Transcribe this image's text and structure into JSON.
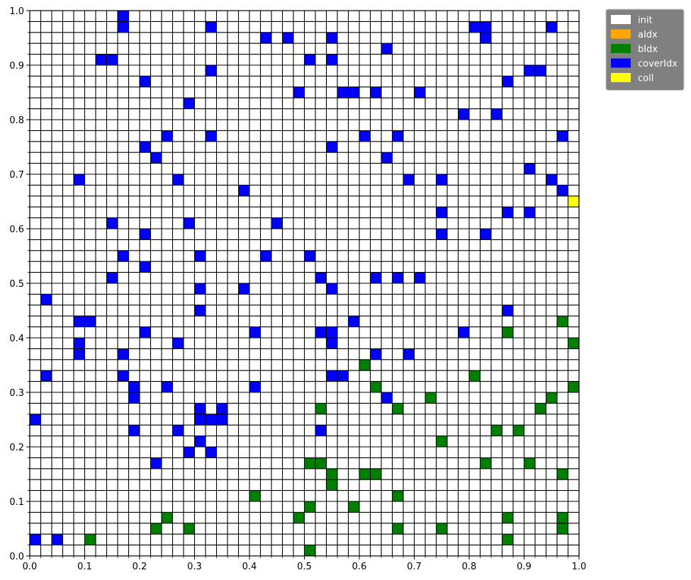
{
  "chart_data": {
    "type": "heatmap",
    "title": "",
    "xlabel": "",
    "ylabel": "",
    "xlim": [
      0,
      1
    ],
    "ylim": [
      0,
      1
    ],
    "grid_divisions": 50,
    "cell_size": 0.02,
    "grid": true,
    "x_ticks": [
      "0.0",
      "0.1",
      "0.2",
      "0.3",
      "0.4",
      "0.5",
      "0.6",
      "0.7",
      "0.8",
      "0.9",
      "1.0"
    ],
    "y_ticks": [
      "0.0",
      "0.1",
      "0.2",
      "0.3",
      "0.4",
      "0.5",
      "0.6",
      "0.7",
      "0.8",
      "0.9",
      "1.0"
    ],
    "legend_position": "upper-right-outside",
    "legend": [
      {
        "label": "init",
        "color": "#ffffff"
      },
      {
        "label": "aIdx",
        "color": "#ffa500"
      },
      {
        "label": "bIdx",
        "color": "#008000"
      },
      {
        "label": "coverIdx",
        "color": "#0000ff"
      },
      {
        "label": "coll",
        "color": "#ffff00"
      }
    ],
    "cells": {
      "coverIdx": [
        [
          0.17,
          0.99
        ],
        [
          0.17,
          0.97
        ],
        [
          0.33,
          0.97
        ],
        [
          0.81,
          0.97
        ],
        [
          0.83,
          0.97
        ],
        [
          0.95,
          0.97
        ],
        [
          0.43,
          0.95
        ],
        [
          0.47,
          0.95
        ],
        [
          0.55,
          0.95
        ],
        [
          0.83,
          0.95
        ],
        [
          0.65,
          0.93
        ],
        [
          0.13,
          0.91
        ],
        [
          0.15,
          0.91
        ],
        [
          0.51,
          0.91
        ],
        [
          0.55,
          0.91
        ],
        [
          0.33,
          0.89
        ],
        [
          0.91,
          0.89
        ],
        [
          0.93,
          0.89
        ],
        [
          0.21,
          0.87
        ],
        [
          0.87,
          0.87
        ],
        [
          0.49,
          0.85
        ],
        [
          0.57,
          0.85
        ],
        [
          0.59,
          0.85
        ],
        [
          0.63,
          0.85
        ],
        [
          0.71,
          0.85
        ],
        [
          0.29,
          0.83
        ],
        [
          0.79,
          0.81
        ],
        [
          0.85,
          0.81
        ],
        [
          0.25,
          0.77
        ],
        [
          0.33,
          0.77
        ],
        [
          0.61,
          0.77
        ],
        [
          0.67,
          0.77
        ],
        [
          0.97,
          0.77
        ],
        [
          0.21,
          0.75
        ],
        [
          0.55,
          0.75
        ],
        [
          0.23,
          0.73
        ],
        [
          0.65,
          0.73
        ],
        [
          0.91,
          0.71
        ],
        [
          0.09,
          0.69
        ],
        [
          0.27,
          0.69
        ],
        [
          0.69,
          0.69
        ],
        [
          0.75,
          0.69
        ],
        [
          0.95,
          0.69
        ],
        [
          0.39,
          0.67
        ],
        [
          0.97,
          0.67
        ],
        [
          0.75,
          0.63
        ],
        [
          0.87,
          0.63
        ],
        [
          0.91,
          0.63
        ],
        [
          0.15,
          0.61
        ],
        [
          0.29,
          0.61
        ],
        [
          0.45,
          0.61
        ],
        [
          0.21,
          0.59
        ],
        [
          0.75,
          0.59
        ],
        [
          0.83,
          0.59
        ],
        [
          0.17,
          0.55
        ],
        [
          0.31,
          0.55
        ],
        [
          0.43,
          0.55
        ],
        [
          0.51,
          0.55
        ],
        [
          0.21,
          0.53
        ],
        [
          0.15,
          0.51
        ],
        [
          0.53,
          0.51
        ],
        [
          0.63,
          0.51
        ],
        [
          0.67,
          0.51
        ],
        [
          0.71,
          0.51
        ],
        [
          0.31,
          0.49
        ],
        [
          0.39,
          0.49
        ],
        [
          0.55,
          0.49
        ],
        [
          0.03,
          0.47
        ],
        [
          0.31,
          0.45
        ],
        [
          0.87,
          0.45
        ],
        [
          0.09,
          0.43
        ],
        [
          0.11,
          0.43
        ],
        [
          0.59,
          0.43
        ],
        [
          0.21,
          0.41
        ],
        [
          0.41,
          0.41
        ],
        [
          0.53,
          0.41
        ],
        [
          0.55,
          0.41
        ],
        [
          0.79,
          0.41
        ],
        [
          0.09,
          0.39
        ],
        [
          0.27,
          0.39
        ],
        [
          0.55,
          0.39
        ],
        [
          0.09,
          0.37
        ],
        [
          0.17,
          0.37
        ],
        [
          0.63,
          0.37
        ],
        [
          0.69,
          0.37
        ],
        [
          0.03,
          0.33
        ],
        [
          0.17,
          0.33
        ],
        [
          0.55,
          0.33
        ],
        [
          0.57,
          0.33
        ],
        [
          0.19,
          0.31
        ],
        [
          0.25,
          0.31
        ],
        [
          0.41,
          0.31
        ],
        [
          0.19,
          0.29
        ],
        [
          0.65,
          0.29
        ],
        [
          0.31,
          0.27
        ],
        [
          0.35,
          0.27
        ],
        [
          0.01,
          0.25
        ],
        [
          0.31,
          0.25
        ],
        [
          0.33,
          0.25
        ],
        [
          0.35,
          0.25
        ],
        [
          0.19,
          0.23
        ],
        [
          0.27,
          0.23
        ],
        [
          0.53,
          0.23
        ],
        [
          0.31,
          0.21
        ],
        [
          0.29,
          0.19
        ],
        [
          0.33,
          0.19
        ],
        [
          0.23,
          0.17
        ],
        [
          0.01,
          0.03
        ],
        [
          0.05,
          0.03
        ]
      ],
      "bIdx": [
        [
          0.97,
          0.43
        ],
        [
          0.87,
          0.41
        ],
        [
          0.99,
          0.39
        ],
        [
          0.61,
          0.35
        ],
        [
          0.81,
          0.33
        ],
        [
          0.63,
          0.31
        ],
        [
          0.99,
          0.31
        ],
        [
          0.73,
          0.29
        ],
        [
          0.95,
          0.29
        ],
        [
          0.53,
          0.27
        ],
        [
          0.67,
          0.27
        ],
        [
          0.93,
          0.27
        ],
        [
          0.85,
          0.23
        ],
        [
          0.89,
          0.23
        ],
        [
          0.75,
          0.21
        ],
        [
          0.51,
          0.17
        ],
        [
          0.53,
          0.17
        ],
        [
          0.83,
          0.17
        ],
        [
          0.91,
          0.17
        ],
        [
          0.55,
          0.15
        ],
        [
          0.61,
          0.15
        ],
        [
          0.63,
          0.15
        ],
        [
          0.97,
          0.15
        ],
        [
          0.55,
          0.13
        ],
        [
          0.41,
          0.11
        ],
        [
          0.67,
          0.11
        ],
        [
          0.51,
          0.09
        ],
        [
          0.59,
          0.09
        ],
        [
          0.25,
          0.07
        ],
        [
          0.49,
          0.07
        ],
        [
          0.87,
          0.07
        ],
        [
          0.97,
          0.07
        ],
        [
          0.23,
          0.05
        ],
        [
          0.29,
          0.05
        ],
        [
          0.67,
          0.05
        ],
        [
          0.75,
          0.05
        ],
        [
          0.97,
          0.05
        ],
        [
          0.11,
          0.03
        ],
        [
          0.87,
          0.03
        ],
        [
          0.51,
          0.01
        ]
      ],
      "coll": [
        [
          0.99,
          0.65
        ]
      ],
      "aIdx": []
    }
  }
}
